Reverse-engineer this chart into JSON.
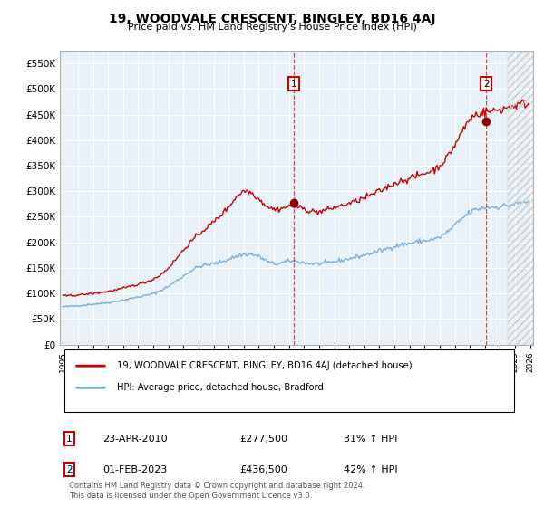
{
  "title": "19, WOODVALE CRESCENT, BINGLEY, BD16 4AJ",
  "subtitle": "Price paid vs. HM Land Registry's House Price Index (HPI)",
  "ylim": [
    0,
    575000
  ],
  "yticks": [
    0,
    50000,
    100000,
    150000,
    200000,
    250000,
    300000,
    350000,
    400000,
    450000,
    500000,
    550000
  ],
  "ytick_labels": [
    "£0",
    "£50K",
    "£100K",
    "£150K",
    "£200K",
    "£250K",
    "£300K",
    "£350K",
    "£400K",
    "£450K",
    "£500K",
    "£550K"
  ],
  "bg_color": "#e8f0f8",
  "hpi_color": "#7ab0d8",
  "price_color": "#cc0000",
  "legend_label_price": "19, WOODVALE CRESCENT, BINGLEY, BD16 4AJ (detached house)",
  "legend_label_hpi": "HPI: Average price, detached house, Bradford",
  "footer": "Contains HM Land Registry data © Crown copyright and database right 2024.\nThis data is licensed under the Open Government Licence v3.0.",
  "annotation1_date": "23-APR-2010",
  "annotation1_price": "£277,500",
  "annotation1_hpi": "31% ↑ HPI",
  "annotation2_date": "01-FEB-2023",
  "annotation2_price": "£436,500",
  "annotation2_hpi": "42% ↑ HPI",
  "x_start_year": 1995,
  "x_end_year": 2026,
  "marker1_year": 2010.3,
  "marker1_price": 277500,
  "marker2_year": 2023.08,
  "marker2_price": 436500
}
